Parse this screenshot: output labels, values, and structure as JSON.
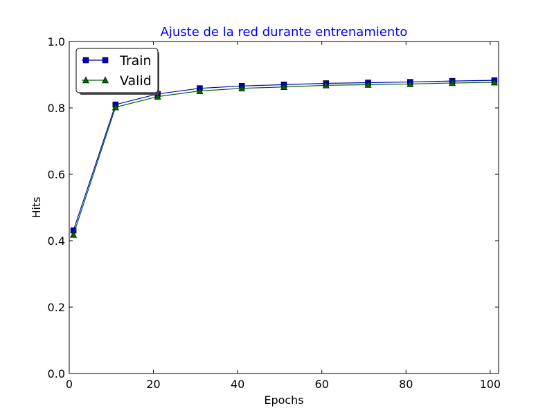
{
  "chart_data": {
    "type": "line",
    "title": "Ajuste de la red durante entrenamiento",
    "title_color": "#0000ff",
    "xlabel": "Epochs",
    "ylabel": "Hits",
    "xlim": [
      0,
      102
    ],
    "ylim": [
      0.0,
      1.0
    ],
    "xticks": [
      0,
      20,
      40,
      60,
      80,
      100
    ],
    "yticks": [
      0.0,
      0.2,
      0.4,
      0.6,
      0.8,
      1.0
    ],
    "xtick_labels": [
      "0",
      "20",
      "40",
      "60",
      "80",
      "100"
    ],
    "ytick_labels": [
      "0.0",
      "0.2",
      "0.4",
      "0.6",
      "0.8",
      "1.0"
    ],
    "grid": false,
    "legend_position": "top-left",
    "x": [
      1,
      11,
      21,
      31,
      41,
      51,
      61,
      71,
      81,
      91,
      101
    ],
    "series": [
      {
        "name": "Train",
        "color": "#0000cc",
        "marker": "square",
        "values": [
          0.431,
          0.81,
          0.842,
          0.859,
          0.866,
          0.87,
          0.874,
          0.876,
          0.878,
          0.881,
          0.883
        ]
      },
      {
        "name": "Valid",
        "color": "#006600",
        "marker": "triangle",
        "values": [
          0.418,
          0.802,
          0.834,
          0.851,
          0.859,
          0.863,
          0.868,
          0.87,
          0.872,
          0.875,
          0.877
        ]
      }
    ]
  }
}
